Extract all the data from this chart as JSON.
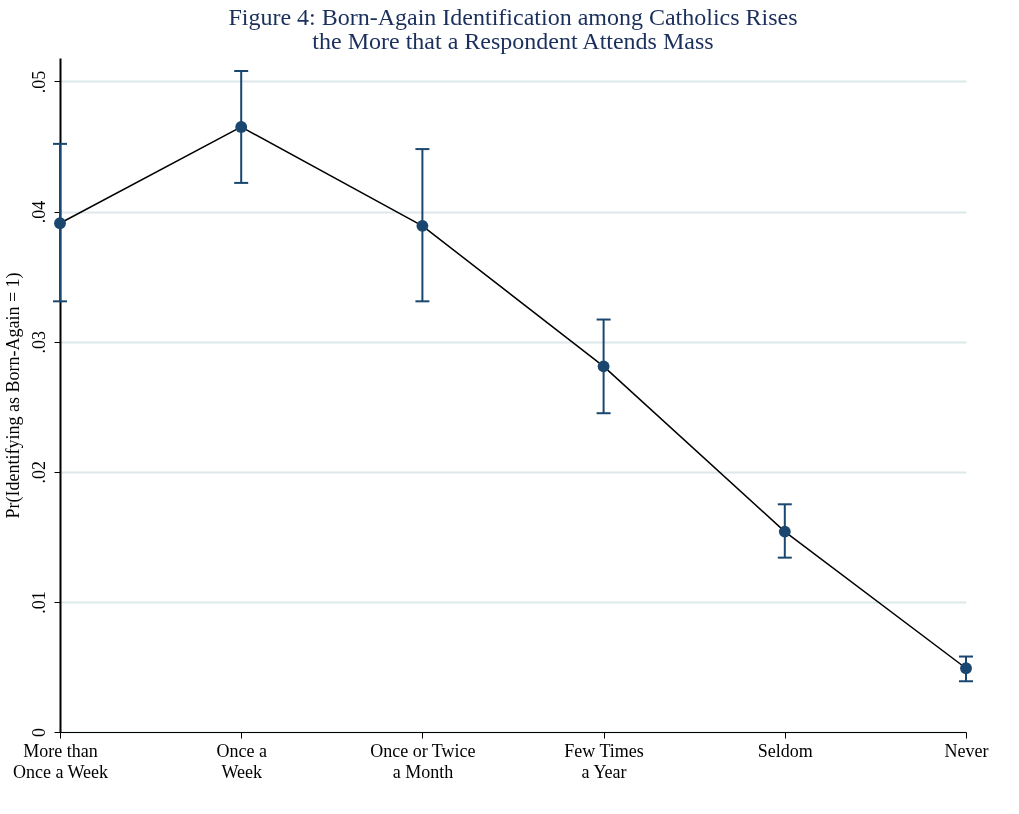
{
  "chart_data": {
    "type": "line",
    "title": "Figure 4: Born-Again Identification among Catholics Rises\nthe More that a Respondent Attends Mass",
    "ylabel": "Pr(Identifying as Born-Again = 1)",
    "categories": [
      "More than\nOnce a Week",
      "Once a\nWeek",
      "Once or Twice\na Month",
      "Few Times\na Year",
      "Seldom",
      "Never"
    ],
    "series": [
      {
        "marker": "none",
        "color": "#000000",
        "values": [
          0.0391,
          0.0465,
          0.0389,
          0.0281,
          0.0154,
          0.0049
        ]
      },
      {
        "type": "scatter",
        "color": "#1a476f",
        "values": [
          0.0391,
          0.0465,
          0.0389,
          0.0281,
          0.0154,
          0.0049
        ],
        "errors": [
          [
            0.0331,
            0.0452
          ],
          [
            0.0422,
            0.0508
          ],
          [
            0.0331,
            0.0448
          ],
          [
            0.0245,
            0.0317
          ],
          [
            0.0134,
            0.0175
          ],
          [
            0.0039,
            0.0058
          ]
        ]
      }
    ],
    "ylim": [
      0,
      0.0518
    ],
    "yticks": [
      0,
      {
        "value": 0.01,
        "label": ".01"
      },
      {
        "value": 0.02,
        "label": ".02"
      },
      {
        "value": 0.03,
        "label": ".03"
      },
      {
        "value": 0.04,
        "label": ".04"
      },
      {
        "value": 0.05,
        "label": ".05"
      }
    ],
    "grid": "y",
    "marker": "circle"
  }
}
